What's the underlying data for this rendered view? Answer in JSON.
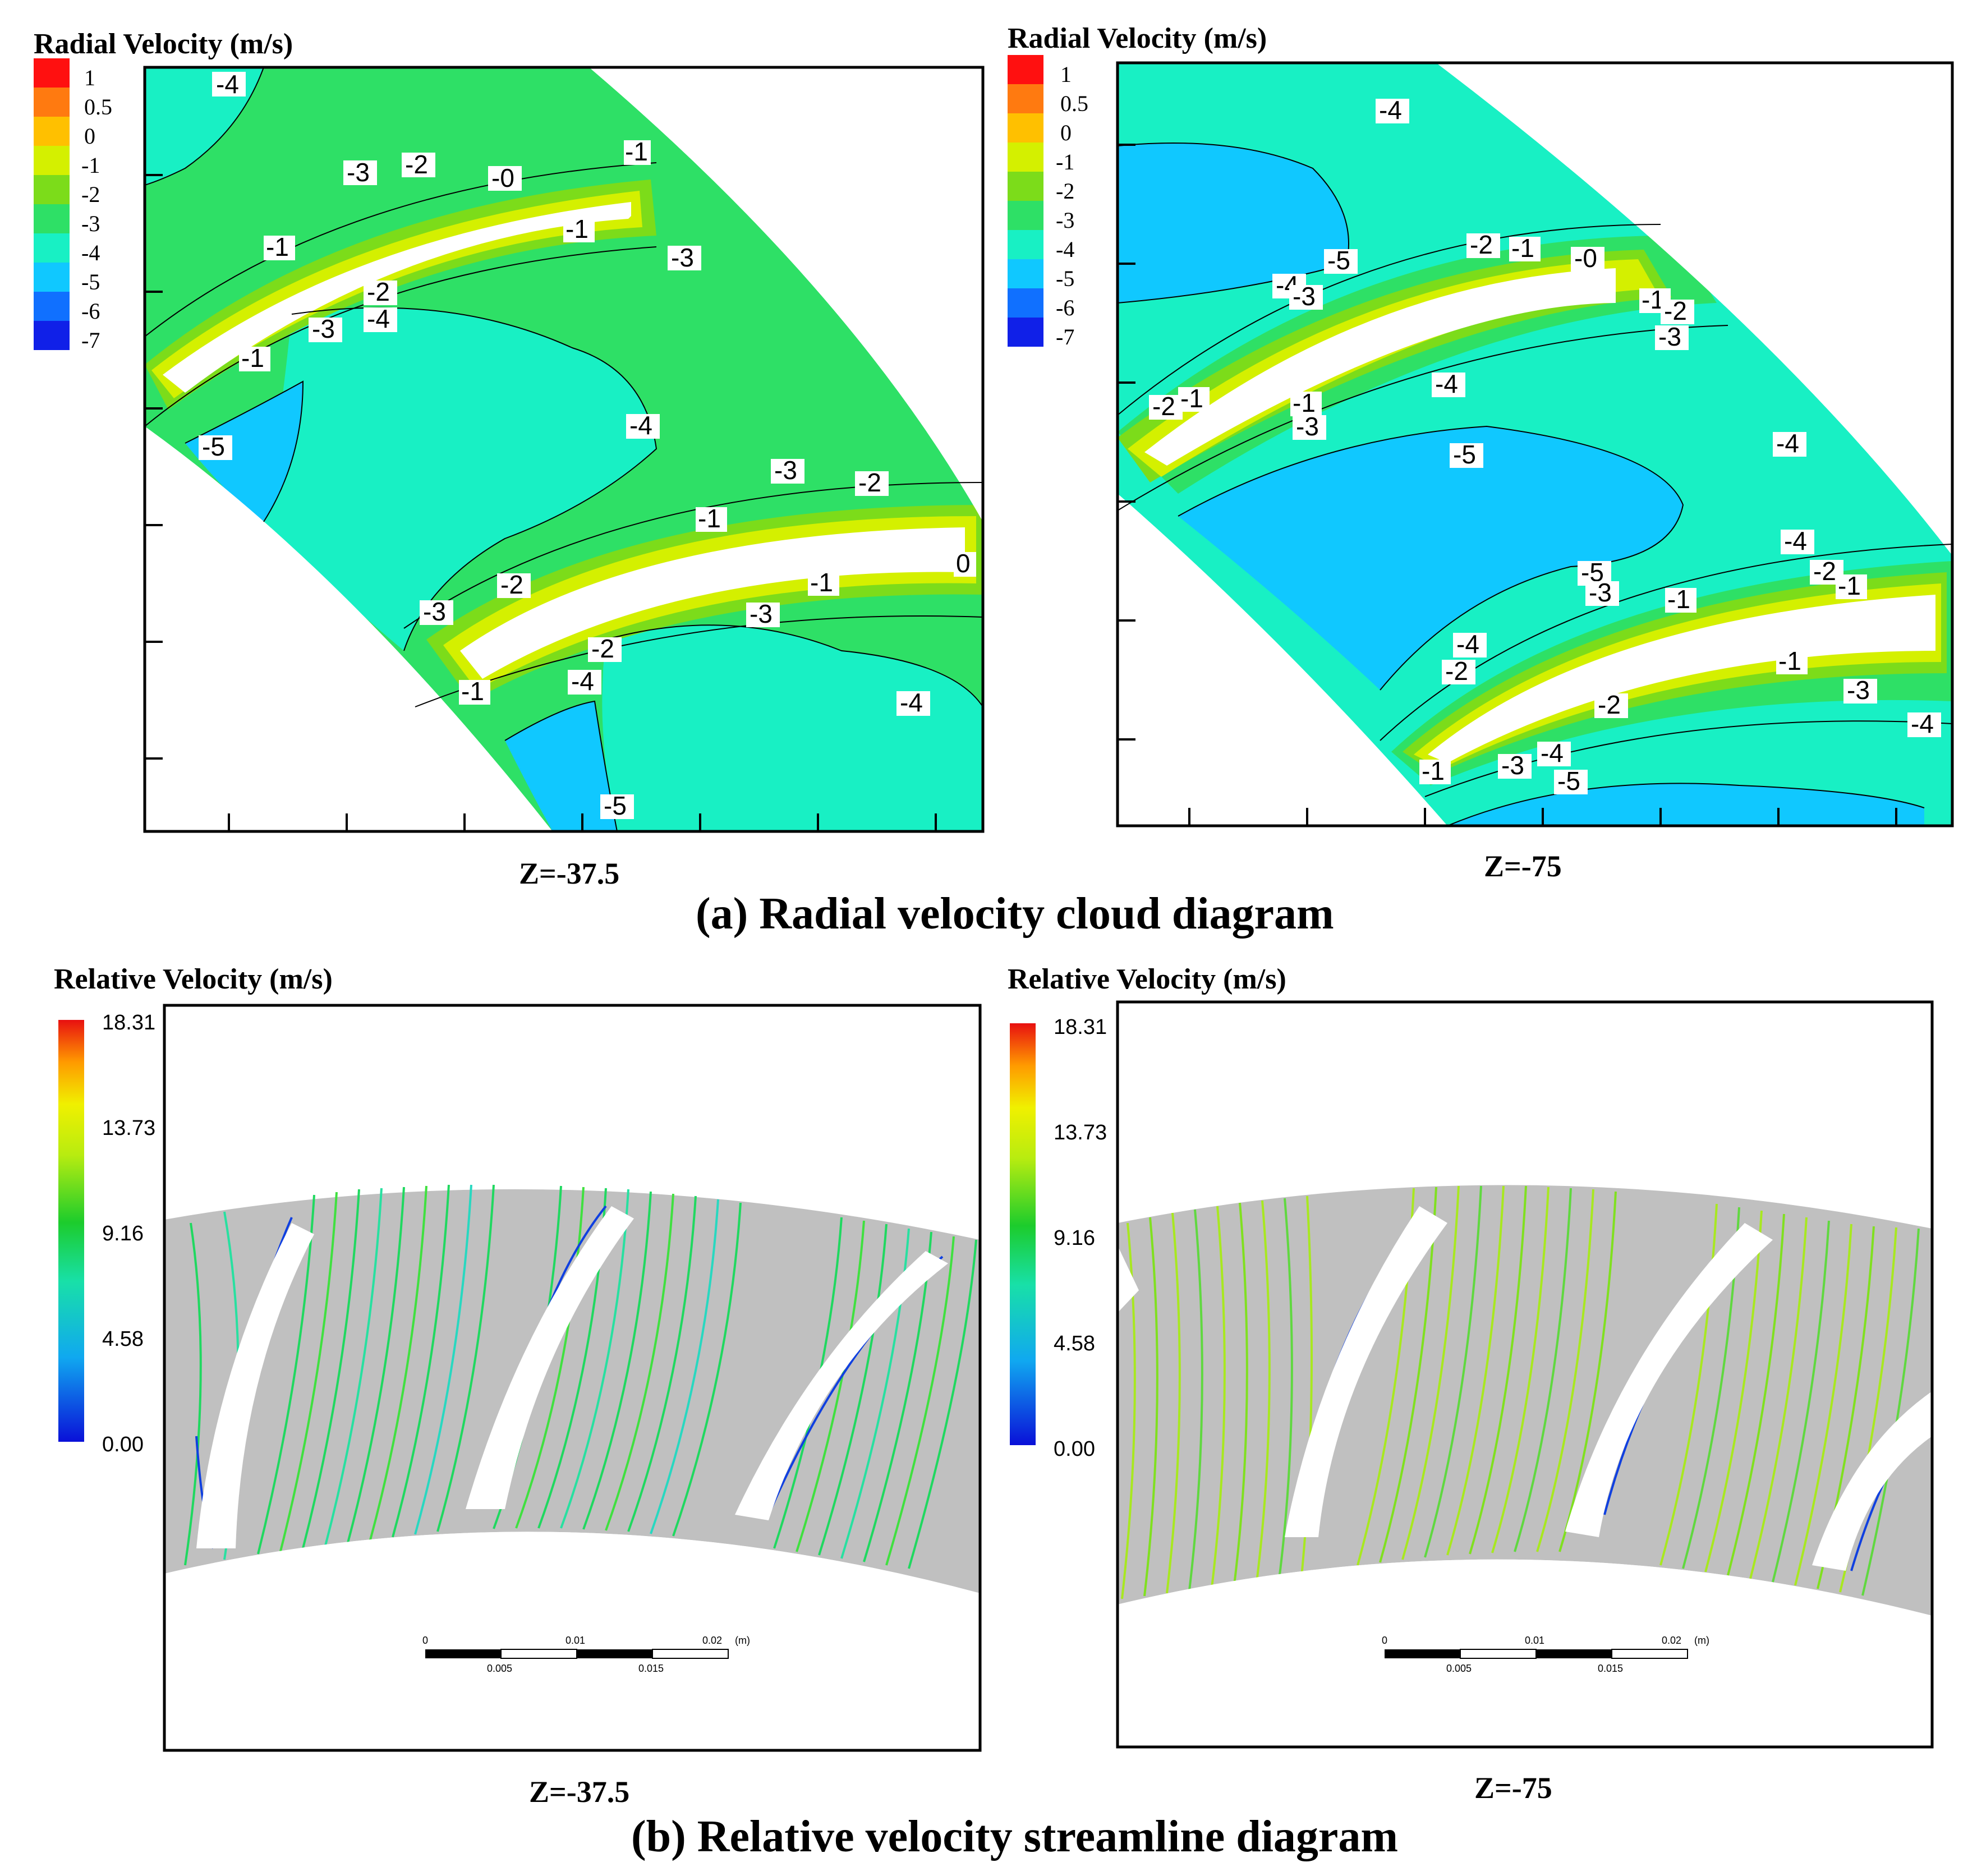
{
  "figure": {
    "section_a_title": "(a) Radial velocity cloud diagram",
    "section_b_title": "(b) Relative velocity streamline diagram"
  },
  "panel_a1": {
    "legend_title": "Radial Velocity (m/s)",
    "legend_levels": [
      "1",
      "0.5",
      "0",
      "-1",
      "-2",
      "-3",
      "-4",
      "-5",
      "-6",
      "-7"
    ],
    "legend_colors": [
      "#ff1010",
      "#ff7a10",
      "#ffc000",
      "#d4f000",
      "#7cdc1a",
      "#2ee066",
      "#18f0c4",
      "#10c8ff",
      "#1070ff",
      "#1020e8"
    ],
    "caption": "Z=-37.5",
    "contour_labels": [
      "-4",
      "-3",
      "-2",
      "-0",
      "-1",
      "-1",
      "-3",
      "-1",
      "-3",
      "-2",
      "-4",
      "-1",
      "-5",
      "-4",
      "-3",
      "-2",
      "-1",
      "0",
      "-2",
      "-1",
      "-3",
      "-3",
      "-2",
      "-4",
      "-1",
      "-4",
      "-5"
    ]
  },
  "panel_a2": {
    "legend_title": "Radial Velocity (m/s)",
    "legend_levels": [
      "1",
      "0.5",
      "0",
      "-1",
      "-2",
      "-3",
      "-4",
      "-5",
      "-6",
      "-7"
    ],
    "caption": "Z=-75",
    "contour_labels": [
      "-4",
      "-5",
      "-2",
      "-1",
      "-0",
      "-4",
      "-3",
      "-1",
      "-2",
      "-3",
      "-2",
      "-1",
      "-1",
      "-3",
      "-4",
      "-5",
      "-4",
      "-4",
      "-2",
      "-1",
      "-5",
      "-3",
      "-1",
      "-4",
      "-2",
      "-1",
      "-3",
      "-2",
      "-4",
      "-1",
      "-3",
      "-4",
      "-5"
    ]
  },
  "panel_b1": {
    "legend_title": "Relative Velocity (m/s)",
    "legend_ticks": [
      "18.31",
      "13.73",
      "9.16",
      "4.58",
      "0.00"
    ],
    "caption": "Z=-37.5",
    "scale_top": [
      "0",
      "0.01",
      "0.02",
      "(m)"
    ],
    "scale_bottom": [
      "0.005",
      "0.015"
    ]
  },
  "panel_b2": {
    "legend_title": "Relative Velocity (m/s)",
    "legend_ticks": [
      "18.31",
      "13.73",
      "9.16",
      "4.58",
      "0.00"
    ],
    "caption": "Z=-75",
    "scale_top": [
      "0",
      "0.01",
      "0.02",
      "(m)"
    ],
    "scale_bottom": [
      "0.005",
      "0.015"
    ]
  }
}
